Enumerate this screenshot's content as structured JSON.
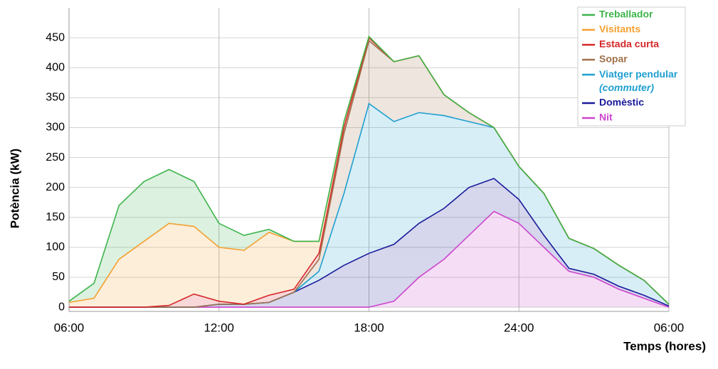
{
  "chart_data": {
    "type": "stacked-area",
    "x_label": "Temps (hores)",
    "y_label": "Potència (kW)",
    "x": [
      6,
      7,
      8,
      9,
      10,
      11,
      12,
      13,
      14,
      15,
      16,
      17,
      18,
      19,
      20,
      21,
      22,
      23,
      24,
      25,
      26,
      27,
      28,
      29,
      30
    ],
    "xlim": [
      6,
      30
    ],
    "xticks": [
      {
        "value": 6,
        "label": "06:00"
      },
      {
        "value": 12,
        "label": "12:00"
      },
      {
        "value": 18,
        "label": "18:00"
      },
      {
        "value": 24,
        "label": "24:00"
      },
      {
        "value": 30,
        "label": "06:00"
      }
    ],
    "ylim": [
      -7,
      500
    ],
    "yticks": [
      0,
      50,
      100,
      150,
      200,
      250,
      300,
      350,
      400,
      450
    ],
    "grid": true,
    "legend": "top-right",
    "series": [
      {
        "name": "Treballador",
        "color": "#3cb44b",
        "values": [
          2,
          25,
          90,
          100,
          90,
          75,
          40,
          25,
          5,
          0,
          0,
          0,
          0,
          0,
          0,
          0,
          0,
          0,
          0,
          0,
          0,
          0,
          0,
          0,
          0
        ]
      },
      {
        "name": "Visitants",
        "color": "#f5a030",
        "values": [
          8,
          15,
          80,
          110,
          137,
          113,
          90,
          90,
          105,
          80,
          20,
          10,
          2,
          0,
          0,
          0,
          0,
          0,
          0,
          0,
          0,
          0,
          0,
          0,
          0
        ]
      },
      {
        "name": "Estada curta",
        "color": "#d62728",
        "values": [
          0,
          0,
          0,
          0,
          3,
          22,
          5,
          0,
          12,
          5,
          10,
          10,
          5,
          0,
          0,
          0,
          0,
          0,
          0,
          0,
          0,
          0,
          0,
          0,
          0
        ]
      },
      {
        "name": "Sopar",
        "color": "#a0704a",
        "values": [
          0,
          0,
          0,
          0,
          0,
          0,
          0,
          0,
          0,
          0,
          20,
          100,
          105,
          100,
          95,
          35,
          15,
          0,
          0,
          0,
          0,
          0,
          0,
          0,
          0
        ]
      },
      {
        "name": "Viatger pendular (commuter)",
        "color": "#1f9fd0",
        "values": [
          0,
          0,
          0,
          0,
          0,
          0,
          0,
          0,
          0,
          0,
          15,
          120,
          250,
          205,
          185,
          155,
          110,
          85,
          55,
          70,
          50,
          43,
          35,
          25,
          3
        ]
      },
      {
        "name": "Domèstic",
        "color": "#1a1a9a",
        "values": [
          0,
          0,
          0,
          0,
          0,
          0,
          5,
          5,
          8,
          25,
          45,
          70,
          90,
          95,
          90,
          85,
          80,
          55,
          40,
          20,
          5,
          5,
          5,
          5,
          2
        ]
      },
      {
        "name": "Nit",
        "color": "#cc44cc",
        "values": [
          0,
          0,
          0,
          0,
          0,
          0,
          0,
          0,
          0,
          0,
          0,
          0,
          0,
          10,
          50,
          80,
          120,
          160,
          140,
          100,
          60,
          50,
          30,
          15,
          0
        ]
      }
    ]
  }
}
